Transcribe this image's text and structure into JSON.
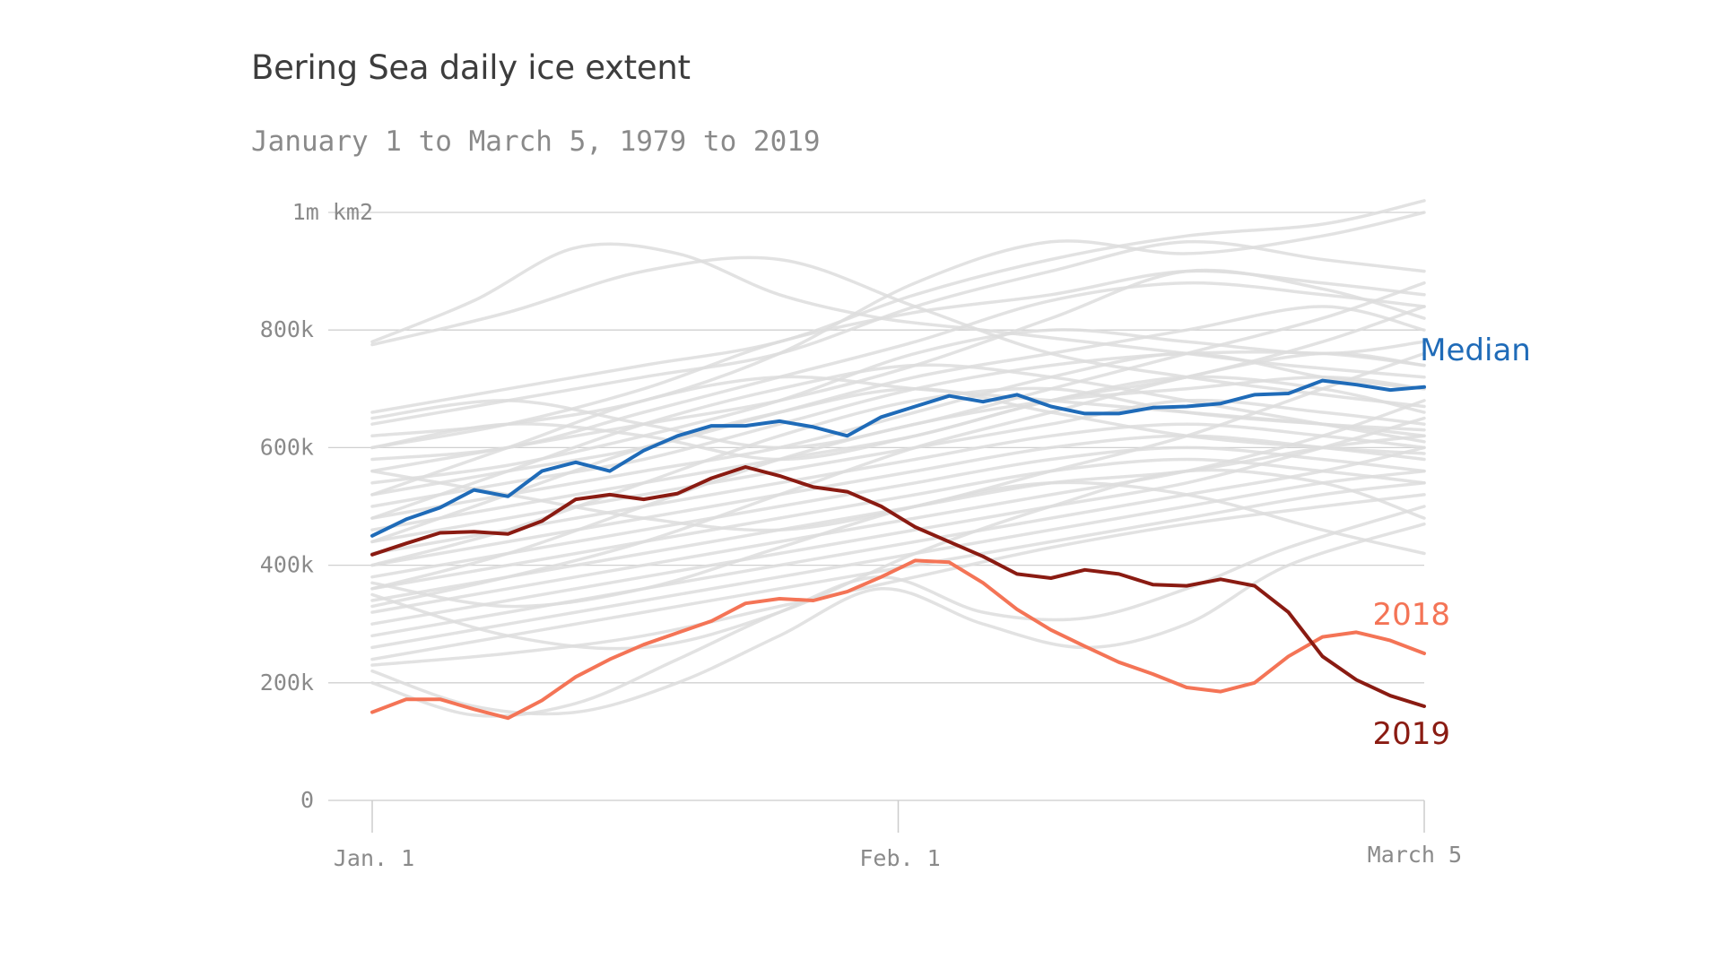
{
  "chart_data": {
    "type": "line",
    "title": "Bering Sea daily ice extent",
    "subtitle": "January 1 to March 5, 1979 to 2019",
    "xlabel": "",
    "ylabel": "",
    "x_ticks": [
      {
        "day": 0,
        "label": "Jan.  1"
      },
      {
        "day": 31,
        "label": "Feb.  1"
      },
      {
        "day": 62,
        "label": "March 5"
      }
    ],
    "y_ticks": [
      {
        "value": 0,
        "label": "0"
      },
      {
        "value": 200000,
        "label": "200k"
      },
      {
        "value": 400000,
        "label": "400k"
      },
      {
        "value": 600000,
        "label": "600k"
      },
      {
        "value": 800000,
        "label": "800k"
      },
      {
        "value": 1000000,
        "label": "1m km2"
      }
    ],
    "ylim": [
      0,
      1000000
    ],
    "grid": true,
    "colors": {
      "median": "#1f6bb8",
      "y2018": "#f47456",
      "y2019": "#8a1b12",
      "background_years": "#dddddd",
      "grid": "#d0d0d0",
      "axis": "#cccccc"
    },
    "highlighted_series": [
      {
        "key": "median",
        "name": "Median",
        "x": [
          0,
          2,
          4,
          6,
          8,
          10,
          12,
          14,
          16,
          18,
          20,
          22,
          24,
          26,
          28,
          30,
          32,
          34,
          36,
          38,
          40,
          42,
          44,
          46,
          48,
          50,
          52,
          54,
          56,
          58,
          60,
          62
        ],
        "values": [
          450000,
          478000,
          498000,
          528000,
          517000,
          560000,
          575000,
          560000,
          595000,
          620000,
          637000,
          637000,
          645000,
          635000,
          620000,
          652000,
          670000,
          688000,
          678000,
          690000,
          670000,
          658000,
          658000,
          668000,
          670000,
          675000,
          690000,
          692000,
          714000,
          707000,
          698000,
          703000
        ]
      },
      {
        "key": "y2018",
        "name": "2018",
        "x": [
          0,
          2,
          4,
          6,
          8,
          10,
          12,
          14,
          16,
          18,
          20,
          22,
          24,
          26,
          28,
          30,
          32,
          34,
          36,
          38,
          40,
          42,
          44,
          46,
          48,
          50,
          52,
          54,
          56,
          58,
          60,
          62
        ],
        "values": [
          150000,
          172000,
          172000,
          155000,
          140000,
          170000,
          210000,
          240000,
          265000,
          285000,
          305000,
          335000,
          343000,
          340000,
          355000,
          380000,
          408000,
          405000,
          370000,
          325000,
          290000,
          262000,
          235000,
          215000,
          192000,
          185000,
          200000,
          245000,
          278000,
          286000,
          272000,
          250000
        ]
      },
      {
        "key": "y2019",
        "name": "2019",
        "x": [
          0,
          2,
          4,
          6,
          8,
          10,
          12,
          14,
          16,
          18,
          20,
          22,
          24,
          26,
          28,
          30,
          32,
          34,
          36,
          38,
          40,
          42,
          44,
          46,
          48,
          50,
          52,
          54,
          56,
          58,
          60,
          62
        ],
        "values": [
          418000,
          437000,
          455000,
          457000,
          453000,
          475000,
          512000,
          520000,
          512000,
          522000,
          548000,
          567000,
          552000,
          533000,
          525000,
          500000,
          465000,
          440000,
          415000,
          385000,
          378000,
          392000,
          385000,
          367000,
          365000,
          376000,
          365000,
          320000,
          245000,
          205000,
          178000,
          160000
        ]
      }
    ],
    "background_years": [
      {
        "x": [
          0,
          8,
          16,
          24,
          32,
          40,
          48,
          56,
          62
        ],
        "values": [
          775000,
          830000,
          900000,
          920000,
          840000,
          760000,
          720000,
          690000,
          670000
        ]
      },
      {
        "x": [
          0,
          6,
          12,
          18,
          24,
          30,
          36,
          42,
          48,
          54,
          62
        ],
        "values": [
          780000,
          850000,
          940000,
          930000,
          860000,
          820000,
          800000,
          780000,
          760000,
          740000,
          720000
        ]
      },
      {
        "x": [
          0,
          8,
          16,
          24,
          32,
          40,
          48,
          56,
          62
        ],
        "values": [
          660000,
          700000,
          740000,
          780000,
          860000,
          920000,
          960000,
          980000,
          1020000
        ]
      },
      {
        "x": [
          0,
          8,
          16,
          24,
          32,
          40,
          48,
          56,
          62
        ],
        "values": [
          620000,
          640000,
          680000,
          760000,
          880000,
          950000,
          930000,
          960000,
          1000000
        ]
      },
      {
        "x": [
          0,
          8,
          16,
          24,
          32,
          40,
          48,
          56,
          62
        ],
        "values": [
          640000,
          680000,
          720000,
          760000,
          840000,
          900000,
          950000,
          920000,
          900000
        ]
      },
      {
        "x": [
          0,
          8,
          16,
          24,
          32,
          40,
          48,
          56,
          62
        ],
        "values": [
          600000,
          640000,
          700000,
          780000,
          830000,
          860000,
          900000,
          880000,
          860000
        ]
      },
      {
        "x": [
          0,
          8,
          16,
          24,
          32,
          40,
          48,
          56,
          62
        ],
        "values": [
          580000,
          600000,
          660000,
          720000,
          780000,
          850000,
          880000,
          860000,
          840000
        ]
      },
      {
        "x": [
          0,
          8,
          16,
          24,
          32,
          40,
          48,
          56,
          62
        ],
        "values": [
          560000,
          600000,
          640000,
          680000,
          740000,
          820000,
          900000,
          870000,
          820000
        ]
      },
      {
        "x": [
          0,
          8,
          16,
          24,
          32,
          40,
          48,
          56,
          62
        ],
        "values": [
          540000,
          570000,
          620000,
          680000,
          760000,
          800000,
          780000,
          760000,
          780000
        ]
      },
      {
        "x": [
          0,
          8,
          16,
          24,
          32,
          40,
          48,
          56,
          62
        ],
        "values": [
          520000,
          560000,
          600000,
          660000,
          720000,
          760000,
          800000,
          840000,
          800000
        ]
      },
      {
        "x": [
          0,
          8,
          16,
          24,
          32,
          40,
          48,
          56,
          62
        ],
        "values": [
          500000,
          540000,
          580000,
          640000,
          700000,
          740000,
          760000,
          760000,
          740000
        ]
      },
      {
        "x": [
          0,
          8,
          16,
          24,
          32,
          40,
          48,
          56,
          62
        ],
        "values": [
          480000,
          520000,
          560000,
          600000,
          660000,
          720000,
          760000,
          720000,
          700000
        ]
      },
      {
        "x": [
          0,
          8,
          16,
          24,
          32,
          40,
          48,
          56,
          62
        ],
        "values": [
          460000,
          500000,
          540000,
          580000,
          620000,
          680000,
          720000,
          700000,
          660000
        ]
      },
      {
        "x": [
          0,
          8,
          16,
          24,
          32,
          40,
          48,
          56,
          62
        ],
        "values": [
          440000,
          480000,
          520000,
          560000,
          600000,
          640000,
          680000,
          660000,
          640000
        ]
      },
      {
        "x": [
          0,
          8,
          16,
          24,
          32,
          40,
          48,
          56,
          62
        ],
        "values": [
          420000,
          460000,
          500000,
          540000,
          580000,
          620000,
          640000,
          620000,
          600000
        ]
      },
      {
        "x": [
          0,
          8,
          16,
          24,
          32,
          40,
          48,
          56,
          62
        ],
        "values": [
          400000,
          440000,
          480000,
          520000,
          560000,
          600000,
          620000,
          600000,
          580000
        ]
      },
      {
        "x": [
          0,
          8,
          16,
          24,
          32,
          40,
          48,
          56,
          62
        ],
        "values": [
          380000,
          420000,
          460000,
          500000,
          540000,
          580000,
          600000,
          580000,
          560000
        ]
      },
      {
        "x": [
          0,
          8,
          16,
          24,
          32,
          40,
          48,
          56,
          62
        ],
        "values": [
          360000,
          400000,
          440000,
          480000,
          520000,
          560000,
          580000,
          560000,
          540000
        ]
      },
      {
        "x": [
          0,
          8,
          16,
          24,
          32,
          40,
          48,
          56,
          62
        ],
        "values": [
          340000,
          380000,
          420000,
          460000,
          500000,
          540000,
          560000,
          600000,
          620000
        ]
      },
      {
        "x": [
          0,
          8,
          16,
          24,
          32,
          40,
          48,
          56,
          62
        ],
        "values": [
          320000,
          360000,
          400000,
          440000,
          480000,
          520000,
          560000,
          620000,
          680000
        ]
      },
      {
        "x": [
          0,
          8,
          16,
          24,
          32,
          40,
          48,
          56,
          62
        ],
        "values": [
          300000,
          340000,
          380000,
          420000,
          460000,
          500000,
          540000,
          600000,
          650000
        ]
      },
      {
        "x": [
          0,
          8,
          16,
          24,
          32,
          40,
          48,
          56,
          62
        ],
        "values": [
          280000,
          320000,
          360000,
          400000,
          440000,
          480000,
          520000,
          560000,
          600000
        ]
      },
      {
        "x": [
          0,
          8,
          16,
          24,
          32,
          40,
          48,
          56,
          62
        ],
        "values": [
          260000,
          300000,
          340000,
          380000,
          420000,
          460000,
          500000,
          540000,
          560000
        ]
      },
      {
        "x": [
          0,
          8,
          16,
          24,
          32,
          40,
          48,
          56,
          62
        ],
        "values": [
          240000,
          280000,
          320000,
          360000,
          400000,
          440000,
          480000,
          520000,
          540000
        ]
      },
      {
        "x": [
          0,
          8,
          16,
          24,
          32,
          40,
          48,
          56,
          62
        ],
        "values": [
          230000,
          250000,
          280000,
          330000,
          380000,
          430000,
          470000,
          500000,
          520000
        ]
      },
      {
        "x": [
          0,
          6,
          12,
          18,
          24,
          30,
          36,
          42,
          48,
          54,
          62
        ],
        "values": [
          220000,
          160000,
          150000,
          200000,
          280000,
          360000,
          300000,
          260000,
          300000,
          400000,
          470000
        ]
      },
      {
        "x": [
          0,
          6,
          12,
          18,
          24,
          30,
          36,
          42,
          48,
          54,
          62
        ],
        "values": [
          200000,
          145000,
          165000,
          240000,
          320000,
          380000,
          320000,
          310000,
          360000,
          430000,
          500000
        ]
      },
      {
        "x": [
          0,
          8,
          16,
          24,
          32,
          40,
          48,
          56,
          62
        ],
        "values": [
          350000,
          280000,
          260000,
          320000,
          420000,
          500000,
          560000,
          540000,
          480000
        ]
      },
      {
        "x": [
          0,
          8,
          16,
          24,
          32,
          40,
          48,
          56,
          62
        ],
        "values": [
          370000,
          330000,
          360000,
          430000,
          500000,
          540000,
          520000,
          460000,
          420000
        ]
      },
      {
        "x": [
          0,
          8,
          16,
          24,
          32,
          40,
          48,
          56,
          62
        ],
        "values": [
          560000,
          520000,
          480000,
          460000,
          500000,
          560000,
          620000,
          700000,
          760000
        ]
      },
      {
        "x": [
          0,
          8,
          16,
          24,
          32,
          40,
          48,
          56,
          62
        ],
        "values": [
          600000,
          640000,
          620000,
          580000,
          620000,
          680000,
          720000,
          780000,
          840000
        ]
      },
      {
        "x": [
          0,
          8,
          16,
          24,
          32,
          40,
          48,
          56,
          62
        ],
        "values": [
          650000,
          680000,
          640000,
          600000,
          640000,
          700000,
          760000,
          820000,
          880000
        ]
      },
      {
        "x": [
          0,
          8,
          16,
          24,
          32,
          40,
          48,
          56,
          62
        ],
        "values": [
          520000,
          600000,
          680000,
          720000,
          700000,
          680000,
          660000,
          640000,
          620000
        ]
      },
      {
        "x": [
          0,
          8,
          16,
          24,
          32,
          40,
          48,
          56,
          62
        ],
        "values": [
          480000,
          560000,
          640000,
          700000,
          740000,
          720000,
          680000,
          640000,
          610000
        ]
      },
      {
        "x": [
          0,
          8,
          16,
          24,
          32,
          40,
          48,
          56,
          62
        ],
        "values": [
          440000,
          520000,
          600000,
          660000,
          700000,
          660000,
          620000,
          600000,
          590000
        ]
      },
      {
        "x": [
          0,
          8,
          16,
          24,
          32,
          40,
          48,
          56,
          62
        ],
        "values": [
          400000,
          460000,
          540000,
          620000,
          680000,
          700000,
          660000,
          640000,
          630000
        ]
      },
      {
        "x": [
          0,
          8,
          16,
          24,
          32,
          40,
          48,
          56,
          62
        ],
        "values": [
          360000,
          420000,
          500000,
          580000,
          640000,
          680000,
          700000,
          720000,
          700000
        ]
      },
      {
        "x": [
          0,
          8,
          16,
          24,
          32,
          40,
          48,
          56,
          62
        ],
        "values": [
          330000,
          380000,
          440000,
          520000,
          600000,
          660000,
          720000,
          760000,
          740000
        ]
      }
    ]
  }
}
